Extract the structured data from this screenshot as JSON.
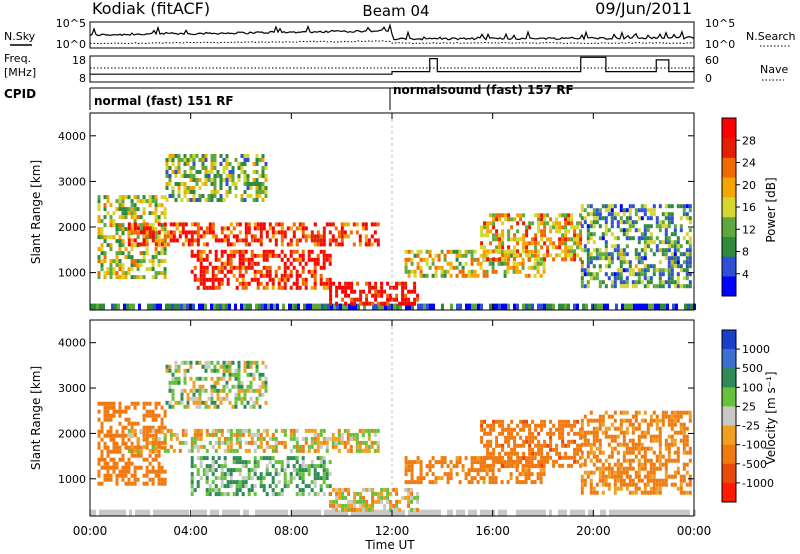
{
  "header": {
    "radar": "Kodiak (fitACF)",
    "beam": "Beam 04",
    "date": "09/Jun/2011"
  },
  "param_strip": {
    "nsky_label": "N.Sky",
    "nsearch_label": "N.Search",
    "freq_label_1": "Freq.",
    "freq_label_2": "[MHz]",
    "nave_label": "Nave",
    "cpid_label": "CPID",
    "noise_ticks_left": [
      "10^5",
      "10^0"
    ],
    "noise_ticks_right": [
      "10^5",
      "10^0"
    ],
    "freq_ticks": [
      "18",
      "8"
    ],
    "nave_ticks": [
      "60",
      "0"
    ]
  },
  "cpid": {
    "segment_1": "normal (fast) 151 RF",
    "segment_2": "normalsound (fast) 157 RF"
  },
  "power_panel": {
    "ylabel": "Slant Range [km]",
    "yticks": [
      "4000",
      "3000",
      "2000",
      "1000"
    ],
    "colorbar_label": "Power [dB]",
    "colorbar_ticks": [
      "28",
      "24",
      "20",
      "16",
      "12",
      "8",
      "4"
    ],
    "colors": [
      "#0000ff",
      "#2e4fd6",
      "#2f8a3e",
      "#5fa840",
      "#d6d630",
      "#f5a500",
      "#f06a00",
      "#e61e00",
      "#ff0000"
    ]
  },
  "velocity_panel": {
    "ylabel": "Slant Range [km]",
    "yticks": [
      "4000",
      "3000",
      "2000",
      "1000"
    ],
    "colorbar_label": "Velocity [m s⁻¹]",
    "colorbar_ticks": [
      "1000",
      "500",
      "100",
      "25",
      "-25",
      "-100",
      "-500",
      "-1000"
    ],
    "colors": [
      "#1a3fc8",
      "#3b6fd0",
      "#2e8b57",
      "#66c23a",
      "#c8c8c4",
      "#f0a020",
      "#f07a10",
      "#e84a0a",
      "#ff1a00"
    ]
  },
  "x_axis": {
    "ticks": [
      "00:00",
      "04:00",
      "08:00",
      "12:00",
      "16:00",
      "20:00",
      "00:00"
    ],
    "label": "Time UT"
  },
  "chart_data": {
    "type": "heatmap",
    "title": "Kodiak (fitACF)",
    "subtitle": "Beam 04  09/Jun/2011",
    "xlabel": "Time UT",
    "ylabel": "Slant Range [km]",
    "x_range_hours": [
      0,
      24
    ],
    "ylim": [
      180,
      4500
    ],
    "panels": [
      {
        "name": "Power",
        "units": "dB",
        "colorbar_range": [
          0,
          30
        ]
      },
      {
        "name": "Velocity",
        "units": "m s^-1",
        "colorbar_range": [
          -1000,
          1000
        ]
      }
    ],
    "cpid_segments": [
      {
        "label": "normal (fast) 151 RF",
        "start_hour": 0,
        "end_hour": 12
      },
      {
        "label": "normalsound (fast) 157 RF",
        "start_hour": 12,
        "end_hour": 24
      }
    ],
    "frequency_mhz": {
      "range": [
        8,
        18
      ],
      "approx_before_12h": 11,
      "approx_after_12h": 12
    },
    "echo_regions": [
      {
        "t0": 0.3,
        "t1": 3.0,
        "r0": 900,
        "r1": 2700,
        "power_db": 14,
        "velocity": -300
      },
      {
        "t0": 1.5,
        "t1": 11.5,
        "r0": 1600,
        "r1": 2100,
        "power_db": 24,
        "velocity": -25
      },
      {
        "t0": 4.0,
        "t1": 9.5,
        "r0": 700,
        "r1": 1500,
        "power_db": 26,
        "velocity": 100
      },
      {
        "t0": 3.0,
        "t1": 7.0,
        "r0": 2600,
        "r1": 3600,
        "power_db": 12,
        "velocity": 25
      },
      {
        "t0": 9.5,
        "t1": 13.0,
        "r0": 300,
        "r1": 800,
        "power_db": 28,
        "velocity": -25
      },
      {
        "t0": 12.5,
        "t1": 18.0,
        "r0": 900,
        "r1": 1500,
        "power_db": 16,
        "velocity": -200
      },
      {
        "t0": 15.5,
        "t1": 19.5,
        "r0": 1300,
        "r1": 2300,
        "power_db": 18,
        "velocity": -400
      },
      {
        "t0": 19.5,
        "t1": 23.8,
        "r0": 700,
        "r1": 2500,
        "power_db": 10,
        "velocity": -150
      }
    ]
  }
}
